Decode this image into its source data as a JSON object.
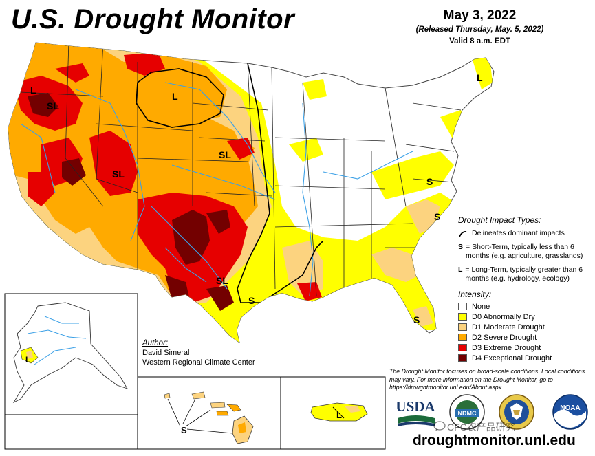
{
  "header": {
    "title": "U.S. Drought Monitor",
    "date": "May 3, 2022",
    "released": "(Released Thursday, May. 5, 2022)",
    "valid": "Valid 8 a.m. EDT"
  },
  "impact_types": {
    "heading": "Drought Impact Types:",
    "items": [
      {
        "key": "delineates",
        "text": "Delineates dominant impacts"
      },
      {
        "key": "S",
        "text": "= Short-Term, typically less than 6 months (e.g. agriculture, grasslands)"
      },
      {
        "key": "L",
        "text": "= Long-Term, typically greater than 6 months (e.g. hydrology, ecology)"
      }
    ]
  },
  "legend": {
    "heading": "Intensity:",
    "items": [
      {
        "label": "None",
        "color": "#ffffff"
      },
      {
        "label": "D0 Abnormally Dry",
        "color": "#ffff00"
      },
      {
        "label": "D1 Moderate Drought",
        "color": "#fcd37f"
      },
      {
        "label": "D2 Severe Drought",
        "color": "#ffaa00"
      },
      {
        "label": "D3 Extreme Drought",
        "color": "#e60000"
      },
      {
        "label": "D4 Exceptional Drought",
        "color": "#730000"
      }
    ]
  },
  "author": {
    "heading": "Author:",
    "name": "David Simeral",
    "org": "Western Regional Climate Center"
  },
  "note": "The Drought Monitor focuses on broad-scale conditions. Local conditions may vary. For more information on the Drought Monitor, go to https://droughtmonitor.unl.edu/About.aspx",
  "map_labels": {
    "oregon": "SL",
    "washington": "L",
    "montana": "L",
    "utah": "SL",
    "nebraska": "SL",
    "texas": "SL",
    "texas_coast": "S",
    "virginia": "S",
    "carolina": "S",
    "florida": "S",
    "maine": "L",
    "alaska": "L",
    "hawaii": "S",
    "puerto_rico": "L"
  },
  "logos": {
    "usda": "USDA",
    "ndmc": "NDMC",
    "doc": "U.S. Department of Commerce",
    "noaa": "NOAA"
  },
  "website": "droughtmonitor.unl.edu",
  "watermark": "CFC农产品研究"
}
